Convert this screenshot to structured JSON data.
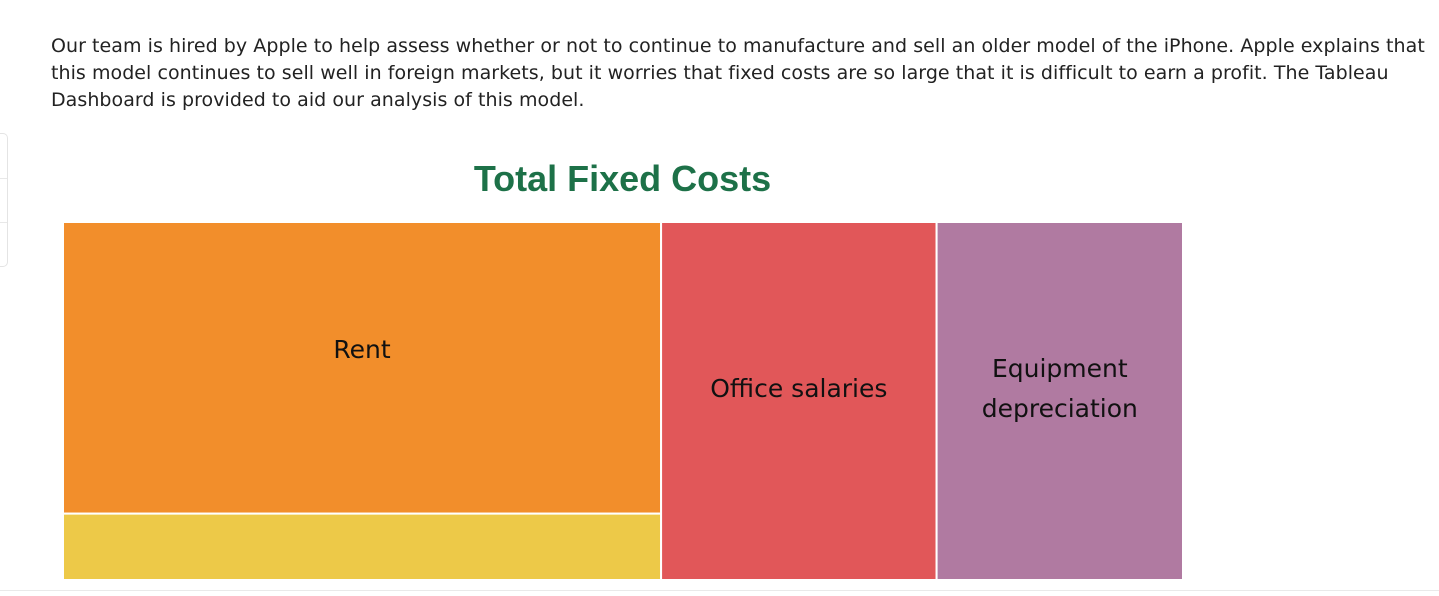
{
  "intro_text": "Our team is hired by Apple to help assess whether or not to continue to manufacture and sell an older model of the iPhone. Apple explains that this model continues to sell well in foreign markets, but it worries that fixed costs are so large that it is difficult to earn a profit. The Tableau Dashboard is provided to aid our analysis of this model.",
  "chart_data": {
    "type": "treemap",
    "title": "Total Fixed Costs",
    "unit_note": "relative share of total fixed costs, estimated from tile areas",
    "categories": [
      "Rent",
      "",
      "Office salaries",
      "Equipment depreciation"
    ],
    "values": [
      43.5,
      9.9,
      24.6,
      22.0
    ],
    "label_lines": [
      [
        "Rent"
      ],
      [],
      [
        "Office salaries"
      ],
      [
        "Equipment",
        "depreciation"
      ]
    ],
    "colors": [
      "#f28e2b",
      "#edc948",
      "#e15759",
      "#b07aa1"
    ]
  }
}
